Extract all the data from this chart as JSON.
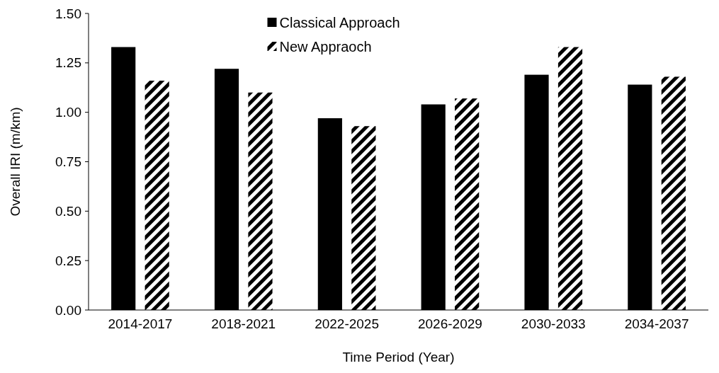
{
  "chart_data": {
    "type": "bar",
    "xlabel": "Time Period (Year)",
    "ylabel": "Overall IRI (m/km)",
    "categories": [
      "2014-2017",
      "2018-2021",
      "2022-2025",
      "2026-2029",
      "2030-2033",
      "2034-2037"
    ],
    "series": [
      {
        "name": "Classical Approach",
        "color": "#000000",
        "values": [
          1.33,
          1.22,
          0.97,
          1.04,
          1.19,
          1.14
        ]
      },
      {
        "name": "New Appraoch",
        "color": "#000000",
        "values": [
          1.16,
          1.1,
          0.93,
          1.07,
          1.33,
          1.18
        ]
      }
    ],
    "ylim": [
      0,
      1.5
    ],
    "yticks": [
      {
        "value": 0,
        "label": "0.00"
      },
      {
        "value": 0.25,
        "label": "0.25"
      },
      {
        "value": 0.5,
        "label": "0.50"
      },
      {
        "value": 0.75,
        "label": "0.75"
      },
      {
        "value": 1,
        "label": "1.00"
      },
      {
        "value": 1.25,
        "label": "1.25"
      },
      {
        "value": 1.5,
        "label": "1.50"
      }
    ],
    "grid": false,
    "legend": "top"
  }
}
